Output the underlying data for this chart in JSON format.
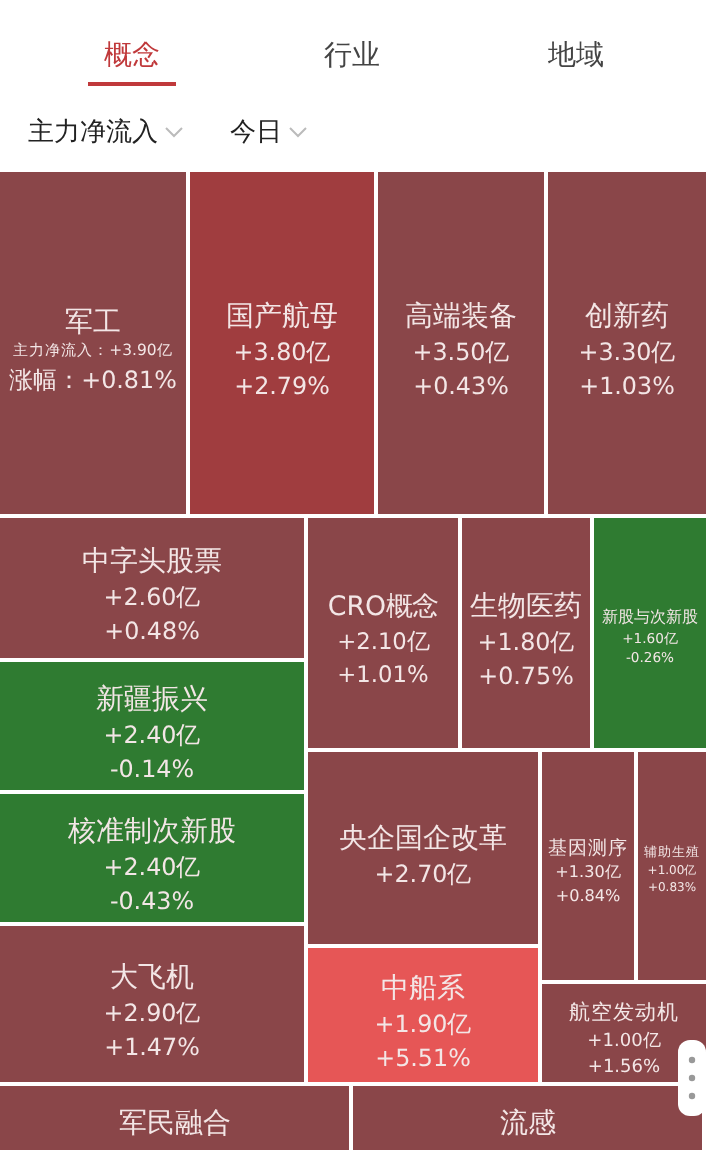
{
  "chart_data": {
    "type": "other",
    "annotations": [
      "概念",
      "行业",
      "地域",
      "主力净流入",
      "今日"
    ],
    "categories": [
      "军工",
      "国产航母",
      "高端装备",
      "创新药",
      "中字头股票",
      "新疆振兴",
      "核准制次新股",
      "大飞机",
      "CRO概念",
      "生物医药",
      "新股与次新股",
      "央企国企改革",
      "中船系",
      "基因测序",
      "辅助生殖",
      "航空发动机",
      "军民融合",
      "流感"
    ],
    "series": [
      {
        "name": "主力净流入：",
        "colors": [
          "#8a4649",
          "#a03d3f",
          "#8a4649",
          "#8a4649",
          "#8a4649",
          "#2f7b31",
          "#2f7b31",
          "#8a4649",
          "#8a4649",
          "#8a4649",
          "#2f7b31",
          "#8a4649",
          "#e65656",
          "#8a4649",
          "#8a4649",
          "#8a4649",
          "#8a4649",
          "#8a4649"
        ],
        "values": [
          3.9,
          3.8,
          3.5,
          3.3,
          2.6,
          2.4,
          2.4,
          2.9,
          2.1,
          1.8,
          1.6,
          2.7,
          1.9,
          1.3,
          1.0,
          1.0,
          null,
          null
        ],
        "value_labels": [
          "+3.90亿",
          "+3.80亿",
          "+3.50亿",
          "+3.30亿",
          "+2.60亿",
          "+2.40亿",
          "+2.40亿",
          "+2.90亿",
          "+2.10亿",
          "+1.80亿",
          "+1.60亿",
          "+2.70亿",
          "+1.90亿",
          "+1.30亿",
          "+1.00亿",
          "+1.00亿",
          null,
          null
        ]
      },
      {
        "name": "涨幅：",
        "values": [
          0.81,
          2.79,
          0.43,
          1.03,
          0.48,
          -0.14,
          -0.43,
          1.47,
          1.01,
          0.75,
          -0.26,
          null,
          5.51,
          0.84,
          0.83,
          1.56,
          null,
          null
        ],
        "value_labels": [
          "+0.81%",
          "+2.79%",
          "+0.43%",
          "+1.03%",
          "+0.48%",
          "-0.14%",
          "-0.43%",
          "+1.47%",
          "+1.01%",
          "+0.75%",
          "-0.26%",
          null,
          "+5.51%",
          "+0.84%",
          "+0.83%",
          "+1.56%",
          null,
          null
        ]
      }
    ]
  }
}
